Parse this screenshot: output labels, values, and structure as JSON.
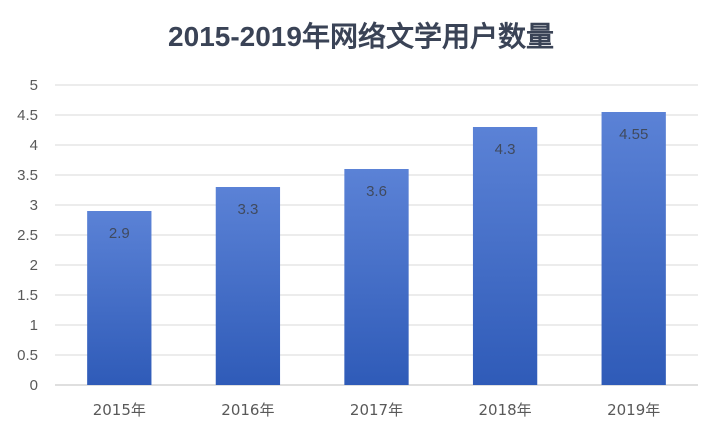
{
  "chart_data": {
    "type": "bar",
    "title": "2015-2019年网络文学用户数量",
    "xlabel": "",
    "ylabel": "",
    "categories": [
      "2015年",
      "2016年",
      "2017年",
      "2018年",
      "2019年"
    ],
    "values": [
      2.9,
      3.3,
      3.6,
      4.3,
      4.55
    ],
    "value_labels": [
      "2.9",
      "3.3",
      "3.6",
      "4.3",
      "4.55"
    ],
    "ylim": [
      0,
      5
    ],
    "yticks": [
      "0",
      "0.5",
      "1",
      "1.5",
      "2",
      "2.5",
      "3",
      "3.5",
      "4",
      "4.5",
      "5"
    ],
    "grid": true,
    "legend": "none",
    "colors": {
      "bar_top": "#5b82d6",
      "bar_bottom": "#2f5bb8",
      "title": "#3a4356"
    }
  }
}
